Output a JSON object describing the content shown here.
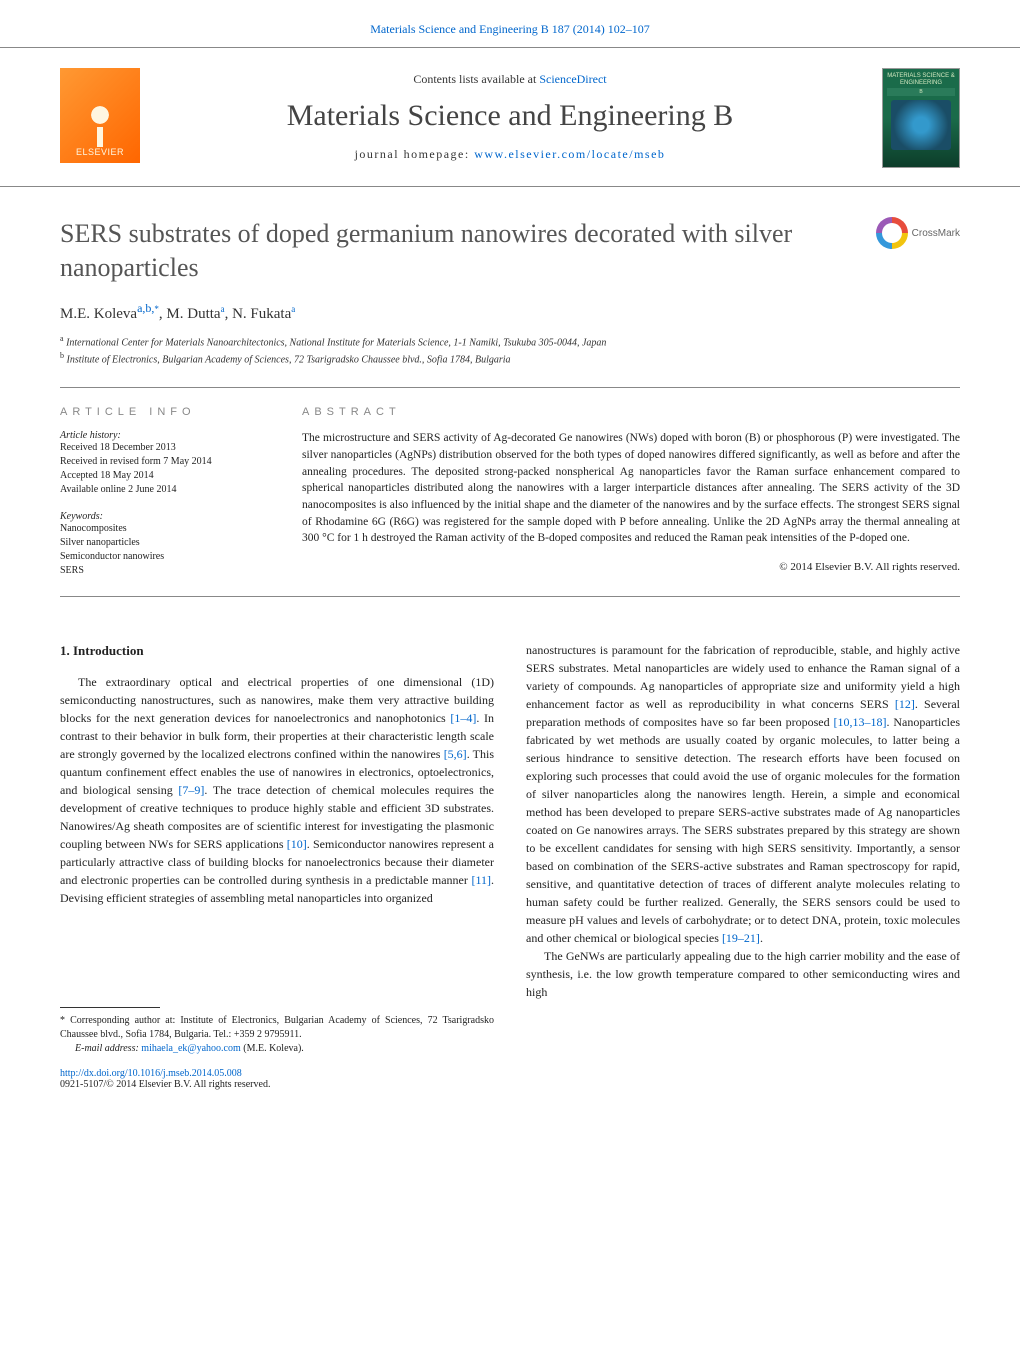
{
  "header": {
    "citation_link": "Materials Science and Engineering B 187 (2014) 102–107",
    "contents_prefix": "Contents lists available at ",
    "contents_link": "ScienceDirect",
    "journal_name": "Materials Science and Engineering B",
    "homepage_prefix": "journal homepage: ",
    "homepage_link": "www.elsevier.com/locate/mseb",
    "publisher": "ELSEVIER",
    "cover_title": "MATERIALS SCIENCE & ENGINEERING",
    "cover_sub": "B"
  },
  "crossmark": "CrossMark",
  "title": "SERS substrates of doped germanium nanowires decorated with silver nanoparticles",
  "authors_html": "M.E. Koleva",
  "author_sup1": "a,b,",
  "author_star": "*",
  "author2": ", M. Dutta",
  "author2_sup": "a",
  "author3": ", N. Fukata",
  "author3_sup": "a",
  "affiliations": {
    "a": "International Center for Materials Nanoarchitectonics, National Institute for Materials Science, 1-1 Namiki, Tsukuba 305-0044, Japan",
    "b": "Institute of Electronics, Bulgarian Academy of Sciences, 72 Tsarigradsko Chaussee blvd., Sofia 1784, Bulgaria"
  },
  "info": {
    "section": "article info",
    "history_head": "Article history:",
    "received": "Received 18 December 2013",
    "revised": "Received in revised form 7 May 2014",
    "accepted": "Accepted 18 May 2014",
    "online": "Available online 2 June 2014",
    "keywords_head": "Keywords:",
    "kw1": "Nanocomposites",
    "kw2": "Silver nanoparticles",
    "kw3": "Semiconductor nanowires",
    "kw4": "SERS"
  },
  "abstract": {
    "section": "abstract",
    "text": "The microstructure and SERS activity of Ag-decorated Ge nanowires (NWs) doped with boron (B) or phosphorous (P) were investigated. The silver nanoparticles (AgNPs) distribution observed for the both types of doped nanowires differed significantly, as well as before and after the annealing procedures. The deposited strong-packed nonspherical Ag nanoparticles favor the Raman surface enhancement compared to spherical nanoparticles distributed along the nanowires with a larger interparticle distances after annealing. The SERS activity of the 3D nanocomposites is also influenced by the initial shape and the diameter of the nanowires and by the surface effects. The strongest SERS signal of Rhodamine 6G (R6G) was registered for the sample doped with P before annealing. Unlike the 2D AgNPs array the thermal annealing at 300 °C for 1 h destroyed the Raman activity of the B-doped composites and reduced the Raman peak intensities of the P-doped one.",
    "copyright": "© 2014 Elsevier B.V. All rights reserved."
  },
  "body": {
    "h1": "1.  Introduction",
    "p1a": "The extraordinary optical and electrical properties of one dimensional (1D) semiconducting nanostructures, such as nanowires, make them very attractive building blocks for the next generation devices for nanoelectronics and nanophotonics ",
    "c1": "[1–4]",
    "p1b": ". In contrast to their behavior in bulk form, their properties at their characteristic length scale are strongly governed by the localized electrons confined within the nanowires ",
    "c2": "[5,6]",
    "p1c": ". This quantum confinement effect enables the use of nanowires in electronics, optoelectronics, and biological sensing ",
    "c3": "[7–9]",
    "p1d": ". The trace detection of chemical molecules requires the development of creative techniques to produce highly stable and efficient 3D substrates. Nanowires/Ag sheath composites are of scientific interest for investigating the plasmonic coupling between NWs for SERS applications ",
    "c4": "[10]",
    "p1e": ". Semiconductor nanowires represent a particularly attractive class of building blocks for nanoelectronics because their diameter and electronic properties can be controlled during synthesis in a predictable manner ",
    "c5": "[11]",
    "p1f": ". Devising efficient strategies of assembling metal nanoparticles into organized ",
    "p2a": "nanostructures is paramount for the fabrication of reproducible, stable, and highly active SERS substrates. Metal nanoparticles are widely used to enhance the Raman signal of a variety of compounds. Ag nanoparticles of appropriate size and uniformity yield a high enhancement factor as well as reproducibility in what concerns SERS ",
    "c6": "[12]",
    "p2b": ". Several preparation methods of composites have so far been proposed ",
    "c7": "[10,13–18]",
    "p2c": ". Nanoparticles fabricated by wet methods are usually coated by organic molecules, to latter being a serious hindrance to sensitive detection. The research efforts have been focused on exploring such processes that could avoid the use of organic molecules for the formation of silver nanoparticles along the nanowires length. Herein, a simple and economical method has been developed to prepare SERS-active substrates made of Ag nanoparticles coated on Ge nanowires arrays. The SERS substrates prepared by this strategy are shown to be excellent candidates for sensing with high SERS sensitivity. Importantly, a sensor based on combination of the SERS-active substrates and Raman spectroscopy for rapid, sensitive, and quantitative detection of traces of different analyte molecules relating to human safety could be further realized. Generally, the SERS sensors could be used to measure pH values and levels of carbohydrate; or to detect DNA, protein, toxic molecules and other chemical or biological species ",
    "c8": "[19–21]",
    "p2d": ".",
    "p3": "The GeNWs are particularly appealing due to the high carrier mobility and the ease of synthesis, i.e. the low growth temperature compared to other semiconducting wires and high"
  },
  "footnotes": {
    "corr": "* Corresponding author at: Institute of Electronics, Bulgarian Academy of Sciences, 72 Tsarigradsko Chaussee blvd., Sofia 1784, Bulgaria. Tel.: +359 2 9795911.",
    "email_label": "E-mail address: ",
    "email": "mihaela_ek@yahoo.com",
    "email_suffix": " (M.E. Koleva)."
  },
  "footer": {
    "doi": "http://dx.doi.org/10.1016/j.mseb.2014.05.008",
    "issn": "0921-5107/© 2014 Elsevier B.V. All rights reserved."
  },
  "colors": {
    "link": "#0066cc",
    "text": "#222222",
    "heading_gray": "#555555",
    "rule": "#888888",
    "elsevier_orange": "#ff7a1a",
    "cover_green": "#1a6b4a"
  }
}
